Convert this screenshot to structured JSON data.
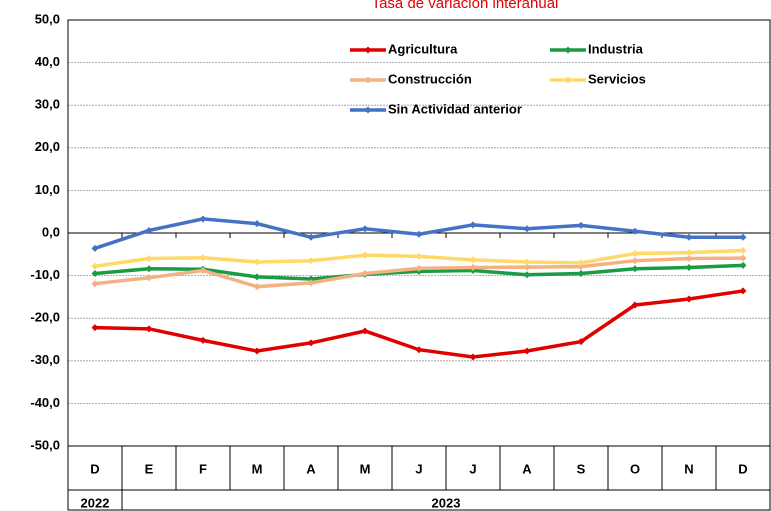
{
  "chart_data": {
    "type": "line",
    "title": "Tasa de variación interanual",
    "categories": [
      "D",
      "E",
      "F",
      "M",
      "A",
      "M",
      "J",
      "J",
      "A",
      "S",
      "O",
      "N",
      "D"
    ],
    "category_groups": [
      {
        "label": "2022",
        "count": 1
      },
      {
        "label": "2023",
        "count": 12
      }
    ],
    "series": [
      {
        "name": "Agricultura",
        "color": "#e00000",
        "values": [
          -22.2,
          -22.5,
          -25.2,
          -27.7,
          -25.8,
          -23.0,
          -27.4,
          -29.1,
          -27.7,
          -25.5,
          -16.9,
          -15.5,
          -13.6
        ]
      },
      {
        "name": "Industria",
        "color": "#1a9c45",
        "values": [
          -9.5,
          -8.4,
          -8.5,
          -10.3,
          -10.8,
          -9.7,
          -9.0,
          -8.8,
          -9.8,
          -9.5,
          -8.4,
          -8.1,
          -7.6
        ]
      },
      {
        "name": "Construcción",
        "color": "#f4b183",
        "values": [
          -11.9,
          -10.5,
          -8.8,
          -12.6,
          -11.7,
          -9.5,
          -8.3,
          -8.1,
          -8.0,
          -7.9,
          -6.5,
          -6.0,
          -5.9
        ]
      },
      {
        "name": "Servicios",
        "color": "#ffd966",
        "values": [
          -7.8,
          -6.0,
          -5.8,
          -6.8,
          -6.5,
          -5.2,
          -5.5,
          -6.3,
          -6.8,
          -7.0,
          -4.8,
          -4.6,
          -4.1
        ]
      },
      {
        "name": "Sin Actividad anterior",
        "color": "#4472c4",
        "values": [
          -3.6,
          0.6,
          3.3,
          2.2,
          -1.0,
          1.0,
          -0.3,
          1.9,
          1.0,
          1.8,
          0.4,
          -1.0,
          -1.0
        ]
      }
    ],
    "ylim": [
      -50,
      50
    ],
    "yticks": [
      {
        "value": -50,
        "label": "-50,0"
      },
      {
        "value": -40,
        "label": "-40,0"
      },
      {
        "value": -30,
        "label": "-30,0"
      },
      {
        "value": -20,
        "label": "-20,0"
      },
      {
        "value": -10,
        "label": "-10,0"
      },
      {
        "value": 0,
        "label": "0,0"
      },
      {
        "value": 10,
        "label": "10,0"
      },
      {
        "value": 20,
        "label": "20,0"
      },
      {
        "value": 30,
        "label": "30,0"
      },
      {
        "value": 40,
        "label": "40,0"
      },
      {
        "value": 50,
        "label": "50,0"
      }
    ],
    "grid": true
  }
}
